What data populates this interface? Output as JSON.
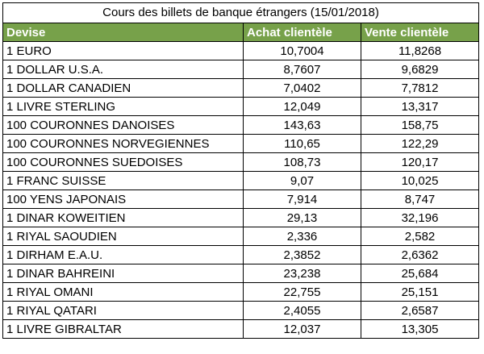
{
  "table": {
    "title": "Cours des billets de banque étrangers (15/01/2018)",
    "header_bg": "#77a14a",
    "columns": [
      "Devise",
      "Achat clientèle",
      "Vente clientèle"
    ],
    "rows": [
      [
        "1 EURO",
        "10,7004",
        "11,8268"
      ],
      [
        "1 DOLLAR U.S.A.",
        "8,7607",
        "9,6829"
      ],
      [
        "1 DOLLAR CANADIEN",
        "7,0402",
        "7,7812"
      ],
      [
        "1 LIVRE STERLING",
        "12,049",
        "13,317"
      ],
      [
        "100 COURONNES DANOISES",
        "143,63",
        "158,75"
      ],
      [
        "100 COURONNES NORVEGIENNES",
        "110,65",
        "122,29"
      ],
      [
        "100 COURONNES SUEDOISES",
        "108,73",
        "120,17"
      ],
      [
        "1 FRANC SUISSE",
        "9,07",
        "10,025"
      ],
      [
        "100 YENS JAPONAIS",
        "7,914",
        "8,747"
      ],
      [
        "1 DINAR KOWEITIEN",
        "29,13",
        "32,196"
      ],
      [
        "1 RIYAL SAOUDIEN",
        "2,336",
        "2,582"
      ],
      [
        "1 DIRHAM E.A.U.",
        "2,3852",
        "2,6362"
      ],
      [
        "1 DINAR BAHREINI",
        "23,238",
        "25,684"
      ],
      [
        "1 RIYAL OMANI",
        "22,755",
        "25,151"
      ],
      [
        "1 RIYAL QATARI",
        "2,4055",
        "2,6587"
      ],
      [
        "1 LIVRE GIBRALTAR",
        "12,037",
        "13,305"
      ]
    ]
  }
}
